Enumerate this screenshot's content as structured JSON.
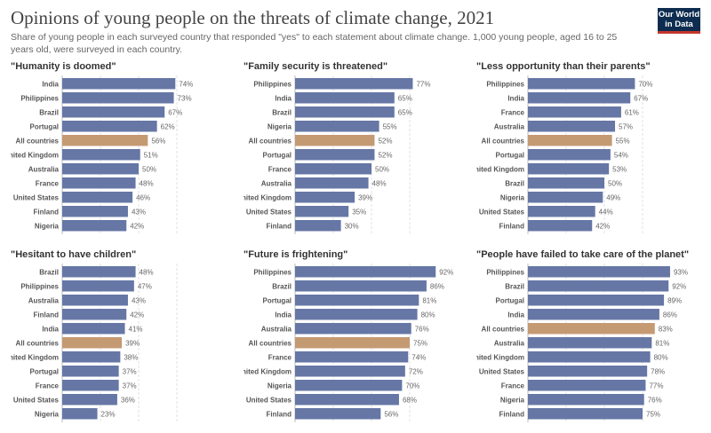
{
  "title": "Opinions of young people on the threats of climate change, 2021",
  "subtitle": "Share of young people in each surveyed country that responded \"yes\" to each statement about climate change. 1,000 young people, aged 16 to 25 years old, were surveyed in each country.",
  "logo": {
    "line1": "Our World",
    "line2": "in Data"
  },
  "colors": {
    "bar": "#6677a6",
    "highlight": "#c49a73"
  },
  "chart_data": [
    {
      "type": "bar",
      "title": "\"Humanity is doomed\"",
      "categories": [
        "India",
        "Philippines",
        "Brazil",
        "Portugal",
        "All countries",
        "United Kingdom",
        "Australia",
        "France",
        "United States",
        "Finland",
        "Nigeria"
      ],
      "values": [
        74,
        73,
        67,
        62,
        56,
        51,
        50,
        48,
        46,
        43,
        42
      ],
      "value_labels": [
        "74%",
        "73%",
        "67%",
        "62%",
        "56%",
        "51%",
        "50%",
        "48%",
        "46%",
        "43%",
        "42%"
      ],
      "highlight": "All countries",
      "xlim": [
        0,
        100
      ]
    },
    {
      "type": "bar",
      "title": "\"Family security is threatened\"",
      "categories": [
        "Philippines",
        "India",
        "Brazil",
        "Nigeria",
        "All countries",
        "Portugal",
        "France",
        "Australia",
        "United Kingdom",
        "United States",
        "Finland"
      ],
      "values": [
        77,
        65,
        65,
        55,
        52,
        52,
        50,
        48,
        39,
        35,
        30
      ],
      "value_labels": [
        "77%",
        "65%",
        "65%",
        "55%",
        "52%",
        "52%",
        "50%",
        "48%",
        "39%",
        "35%",
        "30%"
      ],
      "highlight": "All countries",
      "xlim": [
        0,
        100
      ]
    },
    {
      "type": "bar",
      "title": "\"Less opportunity than their parents\"",
      "categories": [
        "Philippines",
        "India",
        "France",
        "Australia",
        "All countries",
        "Portugal",
        "United Kingdom",
        "Brazil",
        "Nigeria",
        "United States",
        "Finland"
      ],
      "values": [
        70,
        67,
        61,
        57,
        55,
        54,
        53,
        50,
        49,
        44,
        42
      ],
      "value_labels": [
        "70%",
        "67%",
        "61%",
        "57%",
        "55%",
        "54%",
        "53%",
        "50%",
        "49%",
        "44%",
        "42%"
      ],
      "highlight": "All countries",
      "xlim": [
        0,
        100
      ]
    },
    {
      "type": "bar",
      "title": "\"Hesitant to have children\"",
      "categories": [
        "Brazil",
        "Philippines",
        "Australia",
        "Finland",
        "India",
        "All countries",
        "United Kingdom",
        "Portugal",
        "France",
        "United States",
        "Nigeria"
      ],
      "values": [
        48,
        47,
        43,
        42,
        41,
        39,
        38,
        37,
        37,
        36,
        23
      ],
      "value_labels": [
        "48%",
        "47%",
        "43%",
        "42%",
        "41%",
        "39%",
        "38%",
        "37%",
        "37%",
        "36%",
        "23%"
      ],
      "highlight": "All countries",
      "xlim": [
        0,
        100
      ]
    },
    {
      "type": "bar",
      "title": "\"Future is frightening\"",
      "categories": [
        "Philippines",
        "Brazil",
        "Portugal",
        "India",
        "Australia",
        "All countries",
        "France",
        "United Kingdom",
        "Nigeria",
        "United States",
        "Finland"
      ],
      "values": [
        92,
        86,
        81,
        80,
        76,
        75,
        74,
        72,
        70,
        68,
        56
      ],
      "value_labels": [
        "92%",
        "86%",
        "81%",
        "80%",
        "76%",
        "75%",
        "74%",
        "72%",
        "70%",
        "68%",
        "56%"
      ],
      "highlight": "All countries",
      "xlim": [
        0,
        100
      ]
    },
    {
      "type": "bar",
      "title": "\"People have failed to take care of the planet\"",
      "categories": [
        "Philippines",
        "Brazil",
        "Portugal",
        "India",
        "All countries",
        "Australia",
        "United Kingdom",
        "United States",
        "France",
        "Nigeria",
        "Finland"
      ],
      "values": [
        93,
        92,
        89,
        86,
        83,
        81,
        80,
        78,
        77,
        76,
        75
      ],
      "value_labels": [
        "93%",
        "92%",
        "89%",
        "86%",
        "83%",
        "81%",
        "80%",
        "78%",
        "77%",
        "76%",
        "75%"
      ],
      "highlight": "All countries",
      "xlim": [
        0,
        100
      ]
    }
  ]
}
